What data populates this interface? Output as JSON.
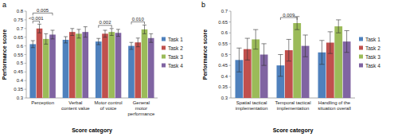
{
  "chart_data": [
    {
      "type": "bar",
      "title": "a",
      "x_label": "Score category",
      "y_label": "Performance score",
      "categories": [
        "Perception",
        "Verbal content value",
        "Motor control of voice",
        "General motor performance"
      ],
      "series": [
        {
          "name": "Task 1",
          "color": "#4f81bd",
          "values": [
            0.61,
            0.635,
            0.625,
            0.6
          ],
          "errors": [
            0.02,
            0.018,
            0.018,
            0.02
          ]
        },
        {
          "name": "Task 2",
          "color": "#c0504d",
          "values": [
            0.7,
            0.68,
            0.67,
            0.62
          ],
          "errors": [
            0.025,
            0.02,
            0.02,
            0.025
          ]
        },
        {
          "name": "Task 3",
          "color": "#9bbb59",
          "values": [
            0.64,
            0.67,
            0.68,
            0.695
          ],
          "errors": [
            0.03,
            0.025,
            0.02,
            0.025
          ]
        },
        {
          "name": "Task 4",
          "color": "#8064a2",
          "values": [
            0.665,
            0.68,
            0.675,
            0.645
          ],
          "errors": [
            0.025,
            0.03,
            0.02,
            0.025
          ]
        }
      ],
      "ylim": [
        0.3,
        0.8
      ],
      "yticks": [
        0.3,
        0.35,
        0.4,
        0.45,
        0.5,
        0.55,
        0.6,
        0.65,
        0.7,
        0.75,
        0.8
      ],
      "grid": false,
      "legend": "right",
      "annotations": [
        {
          "text": "<0.001",
          "category": "Perception",
          "from": "Task 1",
          "to": "Task 2"
        },
        {
          "text": "0.005",
          "category": "Perception",
          "from": "Task 1",
          "to": "Task 4"
        },
        {
          "text": "0.002",
          "category": "Motor control of voice",
          "from": "Task 1",
          "to": "Task 3"
        },
        {
          "text": "0.010",
          "category": "General motor performance",
          "from": "Task 1",
          "to": "Task 3"
        }
      ]
    },
    {
      "type": "bar",
      "title": "b",
      "x_label": "Score category",
      "y_label": "Performance score",
      "categories": [
        "Spatial tactical implementation",
        "Temporal tactical implementation",
        "Handling of the situation overall"
      ],
      "series": [
        {
          "name": "Task 1",
          "color": "#4f81bd",
          "values": [
            0.475,
            0.45,
            0.51
          ],
          "errors": [
            0.055,
            0.05,
            0.055
          ]
        },
        {
          "name": "Task 2",
          "color": "#c0504d",
          "values": [
            0.525,
            0.52,
            0.555
          ],
          "errors": [
            0.05,
            0.05,
            0.05
          ]
        },
        {
          "name": "Task 3",
          "color": "#9bbb59",
          "values": [
            0.57,
            0.645,
            0.63
          ],
          "errors": [
            0.045,
            0.03,
            0.03
          ]
        },
        {
          "name": "Task 4",
          "color": "#8064a2",
          "values": [
            0.5,
            0.54,
            0.56
          ],
          "errors": [
            0.05,
            0.05,
            0.05
          ]
        }
      ],
      "ylim": [
        0.3,
        0.7
      ],
      "yticks": [
        0.3,
        0.35,
        0.4,
        0.45,
        0.5,
        0.55,
        0.6,
        0.65,
        0.7
      ],
      "grid": false,
      "legend": "right",
      "annotations": [
        {
          "text": "0.009",
          "category": "Temporal tactical implementation",
          "from": "Task 1",
          "to": "Task 3"
        }
      ]
    }
  ]
}
